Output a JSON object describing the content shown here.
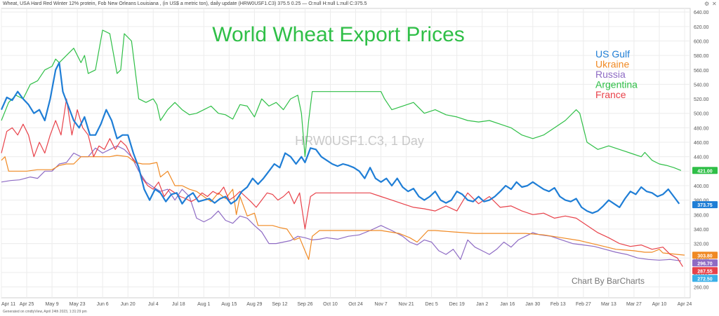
{
  "header": {
    "info": "Wheat, USA Hard Red Winter 12% protein, Fob New Orleans Louisiana , (in US$ a metric ton), daily update (HRW0USF1.C3) 375.5 0.25 — O:null H:null L:null C:375.5",
    "icons": [
      "settings-icon",
      "close-icon"
    ]
  },
  "footer": {
    "generated": "Generated on cmdtyView, April 24th 2023, 1:31:29 pm"
  },
  "chart_data": {
    "type": "line",
    "title": "World Wheat Export Prices",
    "watermark": "HRW0USF1.C3, 1 Day",
    "credit": "Chart By BarCharts",
    "xlabel": "",
    "ylabel": "",
    "ylim": [
      245,
      645
    ],
    "y_ticks": [
      260,
      280,
      300,
      320,
      340,
      360,
      380,
      400,
      420,
      440,
      460,
      480,
      500,
      520,
      540,
      560,
      580,
      600,
      620,
      640
    ],
    "x_tick_labels": [
      "Apr 11",
      "Apr 25",
      "May 9",
      "May 23",
      "Jun 6",
      "Jun 20",
      "Jul 4",
      "Jul 18",
      "Aug 1",
      "Aug 15",
      "Aug 29",
      "Sep 12",
      "Sep 26",
      "Oct 10",
      "Oct 24",
      "Nov 7",
      "Nov 21",
      "Dec 5",
      "Dec 19",
      "Jan 2",
      "Jan 16",
      "Jan 30",
      "Feb 13",
      "Feb 27",
      "Mar 13",
      "Mar 27",
      "Apr 10",
      "Apr 24"
    ],
    "x_tick_days": [
      0,
      14,
      28,
      42,
      56,
      70,
      84,
      98,
      112,
      126,
      140,
      154,
      168,
      182,
      196,
      210,
      224,
      238,
      252,
      266,
      280,
      294,
      308,
      322,
      336,
      350,
      364,
      378
    ],
    "x_range_days": [
      0,
      378
    ],
    "grid": true,
    "legend_position": "top-right",
    "series": [
      {
        "name": "US Gulf",
        "color": "#1f7ed6",
        "last_value": "373.75",
        "x": [
          0,
          3,
          6,
          9,
          12,
          15,
          18,
          21,
          24,
          27,
          30,
          32,
          34,
          37,
          40,
          43,
          46,
          49,
          52,
          55,
          58,
          61,
          64,
          67,
          70,
          73,
          76,
          79,
          82,
          85,
          88,
          91,
          94,
          97,
          100,
          103,
          106,
          109,
          112,
          115,
          118,
          121,
          124,
          127,
          130,
          133,
          136,
          139,
          142,
          145,
          148,
          151,
          154,
          157,
          160,
          163,
          166,
          168,
          171,
          174,
          177,
          180,
          183,
          186,
          189,
          192,
          195,
          198,
          201,
          204,
          207,
          210,
          213,
          216,
          219,
          222,
          225,
          228,
          231,
          234,
          237,
          240,
          243,
          246,
          249,
          252,
          255,
          258,
          261,
          264,
          267,
          270,
          273,
          276,
          279,
          282,
          285,
          288,
          291,
          294,
          297,
          300,
          303,
          306,
          309,
          312,
          315,
          318,
          321,
          324,
          327,
          330,
          333,
          336,
          339,
          342,
          345,
          348,
          351,
          354,
          357,
          360,
          363,
          366,
          369,
          372,
          375
        ],
        "values": [
          505,
          522,
          518,
          530,
          520,
          512,
          500,
          505,
          490,
          520,
          560,
          570,
          530,
          510,
          490,
          480,
          495,
          470,
          470,
          485,
          505,
          490,
          465,
          470,
          470,
          445,
          425,
          395,
          380,
          395,
          390,
          378,
          388,
          390,
          375,
          385,
          390,
          378,
          380,
          382,
          376,
          382,
          385,
          375,
          380,
          392,
          398,
          410,
          402,
          410,
          420,
          430,
          425,
          445,
          440,
          430,
          440,
          432,
          452,
          450,
          440,
          435,
          430,
          427,
          430,
          428,
          425,
          420,
          410,
          425,
          410,
          405,
          410,
          400,
          410,
          398,
          392,
          396,
          385,
          380,
          385,
          392,
          380,
          376,
          380,
          392,
          388,
          380,
          378,
          385,
          378,
          380,
          385,
          392,
          400,
          395,
          405,
          398,
          400,
          405,
          400,
          395,
          392,
          397,
          385,
          380,
          378,
          382,
          370,
          365,
          362,
          365,
          372,
          380,
          375,
          370,
          382,
          392,
          388,
          398,
          392,
          390,
          385,
          388,
          395,
          385,
          375
        ]
      },
      {
        "name": "Ukraine",
        "color": "#f08a24",
        "last_value": "303.80",
        "x": [
          0,
          2,
          4,
          8,
          14,
          20,
          28,
          32,
          36,
          40,
          44,
          50,
          56,
          60,
          64,
          70,
          74,
          78,
          82,
          86,
          88,
          92,
          96,
          100,
          104,
          108,
          112,
          116,
          120,
          124,
          128,
          130,
          132,
          136,
          140,
          142,
          146,
          150,
          154,
          158,
          162,
          165,
          168,
          170,
          172,
          176,
          180,
          186,
          192,
          200,
          210,
          220,
          226,
          230,
          236,
          240,
          250,
          262,
          270,
          280,
          290,
          300,
          310,
          320,
          330,
          340,
          350,
          356,
          360,
          364,
          366,
          370,
          374,
          378
        ],
        "values": [
          435,
          440,
          420,
          420,
          420,
          422,
          422,
          428,
          430,
          430,
          440,
          440,
          440,
          440,
          442,
          440,
          432,
          430,
          430,
          432,
          412,
          420,
          400,
          400,
          395,
          392,
          385,
          378,
          390,
          382,
          395,
          360,
          385,
          358,
          362,
          345,
          345,
          345,
          342,
          340,
          325,
          328,
          310,
          298,
          330,
          338,
          338,
          338,
          338,
          338,
          338,
          334,
          328,
          322,
          338,
          338,
          336,
          334,
          334,
          334,
          334,
          332,
          328,
          324,
          318,
          312,
          310,
          308,
          308,
          312,
          307,
          306,
          305,
          304
        ]
      },
      {
        "name": "Russia",
        "color": "#8e6bc4",
        "last_value": "296.70",
        "x": [
          0,
          5,
          10,
          16,
          20,
          24,
          28,
          32,
          36,
          40,
          44,
          48,
          52,
          56,
          60,
          64,
          68,
          72,
          76,
          80,
          84,
          88,
          92,
          96,
          100,
          104,
          108,
          112,
          116,
          120,
          124,
          128,
          132,
          136,
          140,
          144,
          148,
          152,
          156,
          160,
          164,
          168,
          172,
          176,
          180,
          186,
          192,
          198,
          204,
          210,
          216,
          222,
          226,
          230,
          234,
          238,
          242,
          246,
          250,
          254,
          258,
          262,
          266,
          270,
          274,
          278,
          282,
          286,
          290,
          294,
          298,
          304,
          310,
          316,
          322,
          328,
          334,
          340,
          346,
          352,
          358,
          364,
          370,
          376
        ],
        "values": [
          405,
          407,
          408,
          412,
          410,
          420,
          420,
          430,
          432,
          445,
          440,
          440,
          452,
          445,
          450,
          455,
          450,
          440,
          420,
          405,
          398,
          392,
          395,
          380,
          395,
          385,
          355,
          350,
          355,
          365,
          352,
          348,
          358,
          355,
          345,
          336,
          320,
          320,
          322,
          324,
          330,
          328,
          325,
          326,
          328,
          326,
          330,
          332,
          338,
          345,
          338,
          330,
          322,
          318,
          325,
          322,
          310,
          305,
          312,
          298,
          325,
          315,
          310,
          305,
          312,
          322,
          315,
          325,
          330,
          335,
          332,
          330,
          325,
          320,
          318,
          316,
          312,
          308,
          305,
          300,
          298,
          297,
          298,
          296
        ]
      },
      {
        "name": "Argentina",
        "color": "#2fbf47",
        "last_value": "421.00",
        "x": [
          0,
          4,
          8,
          12,
          16,
          20,
          24,
          28,
          30,
          32,
          36,
          40,
          44,
          46,
          48,
          52,
          56,
          60,
          64,
          66,
          68,
          72,
          76,
          80,
          84,
          86,
          88,
          92,
          96,
          100,
          104,
          108,
          112,
          116,
          120,
          124,
          128,
          132,
          136,
          140,
          144,
          148,
          152,
          156,
          160,
          164,
          166,
          168,
          170,
          172,
          176,
          180,
          186,
          192,
          198,
          204,
          210,
          212,
          216,
          222,
          228,
          234,
          240,
          246,
          252,
          258,
          264,
          270,
          276,
          282,
          288,
          294,
          300,
          306,
          312,
          318,
          320,
          324,
          330,
          336,
          342,
          348,
          354,
          356,
          360,
          364,
          368,
          372,
          376
        ],
        "values": [
          490,
          515,
          525,
          520,
          540,
          545,
          560,
          565,
          575,
          570,
          580,
          590,
          570,
          580,
          555,
          560,
          615,
          610,
          555,
          560,
          610,
          600,
          520,
          515,
          520,
          512,
          490,
          505,
          515,
          505,
          498,
          500,
          505,
          510,
          500,
          498,
          492,
          512,
          510,
          495,
          520,
          510,
          515,
          505,
          520,
          525,
          500,
          440,
          490,
          530,
          530,
          530,
          530,
          530,
          530,
          530,
          530,
          520,
          505,
          510,
          515,
          500,
          505,
          498,
          495,
          490,
          488,
          490,
          485,
          480,
          470,
          465,
          470,
          480,
          490,
          505,
          500,
          460,
          450,
          455,
          450,
          445,
          440,
          446,
          435,
          430,
          428,
          425,
          421
        ]
      },
      {
        "name": "France",
        "color": "#e8424a",
        "last_value": "287.55",
        "x": [
          0,
          3,
          6,
          9,
          12,
          15,
          18,
          21,
          24,
          27,
          30,
          33,
          36,
          39,
          42,
          45,
          48,
          51,
          54,
          57,
          60,
          63,
          66,
          69,
          72,
          75,
          78,
          81,
          84,
          87,
          90,
          93,
          96,
          99,
          102,
          105,
          108,
          111,
          114,
          117,
          120,
          123,
          126,
          129,
          132,
          135,
          138,
          141,
          144,
          147,
          150,
          153,
          156,
          159,
          162,
          165,
          168,
          171,
          174,
          180,
          186,
          192,
          198,
          204,
          210,
          216,
          222,
          228,
          234,
          240,
          246,
          252,
          258,
          264,
          270,
          276,
          282,
          288,
          294,
          300,
          306,
          312,
          318,
          324,
          330,
          336,
          342,
          348,
          354,
          360,
          366,
          370,
          374,
          377
        ],
        "values": [
          445,
          475,
          480,
          470,
          485,
          470,
          440,
          460,
          445,
          470,
          490,
          470,
          520,
          470,
          505,
          480,
          470,
          440,
          455,
          450,
          465,
          450,
          462,
          455,
          440,
          430,
          410,
          400,
          395,
          405,
          385,
          395,
          390,
          385,
          382,
          378,
          382,
          390,
          385,
          392,
          388,
          398,
          380,
          385,
          392,
          385,
          378,
          370,
          380,
          390,
          388,
          380,
          385,
          392,
          375,
          390,
          340,
          385,
          390,
          390,
          390,
          390,
          390,
          390,
          385,
          380,
          375,
          370,
          368,
          365,
          372,
          365,
          390,
          375,
          385,
          370,
          372,
          365,
          360,
          362,
          355,
          358,
          355,
          345,
          335,
          328,
          320,
          316,
          318,
          312,
          315,
          305,
          300,
          288
        ]
      }
    ],
    "last_badges": [
      {
        "label": "421.00",
        "value": 421.0,
        "color": "#2fbf47"
      },
      {
        "label": "373.75",
        "value": 373.75,
        "color": "#1f7ed6"
      },
      {
        "label": "303.80",
        "value": 303.8,
        "color": "#f08a24"
      },
      {
        "label": "296.70",
        "value": 296.7,
        "color": "#8e6bc4"
      },
      {
        "label": "287.55",
        "value": 287.55,
        "color": "#e8424a"
      },
      {
        "label": "272.50",
        "value": 272.5,
        "color": "#3bb0e8"
      }
    ]
  }
}
